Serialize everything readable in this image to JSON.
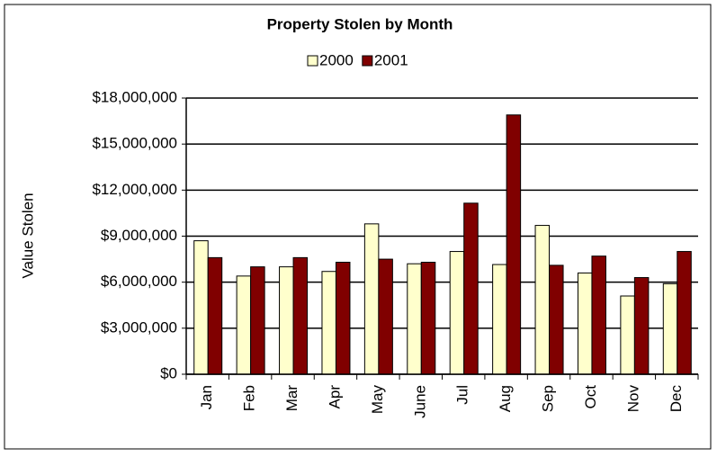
{
  "chart_data": {
    "type": "bar",
    "title": "Property Stolen by Month",
    "ylabel": "Value Stolen",
    "categories": [
      "Jan",
      "Feb",
      "Mar",
      "Apr",
      "May",
      "June",
      "Jul",
      "Aug",
      "Sep",
      "Oct",
      "Nov",
      "Dec"
    ],
    "series": [
      {
        "name": "2000",
        "color": "#ffffcc",
        "values": [
          8700000,
          6400000,
          7000000,
          6700000,
          9800000,
          7200000,
          8000000,
          7150000,
          9700000,
          6600000,
          5100000,
          5900000
        ]
      },
      {
        "name": "2001",
        "color": "#800000",
        "values": [
          7600000,
          7000000,
          7600000,
          7300000,
          7500000,
          7300000,
          11150000,
          16900000,
          7100000,
          7700000,
          6300000,
          8000000
        ]
      }
    ],
    "ylim": [
      0,
      18000000
    ],
    "yticks": [
      {
        "value": 0,
        "label": "$0"
      },
      {
        "value": 3000000,
        "label": "$3,000,000"
      },
      {
        "value": 6000000,
        "label": "$6,000,000"
      },
      {
        "value": 9000000,
        "label": "$9,000,000"
      },
      {
        "value": 12000000,
        "label": "$12,000,000"
      },
      {
        "value": 15000000,
        "label": "$15,000,000"
      },
      {
        "value": 18000000,
        "label": "$18,000,000"
      }
    ],
    "grid": true,
    "legend": "top"
  }
}
